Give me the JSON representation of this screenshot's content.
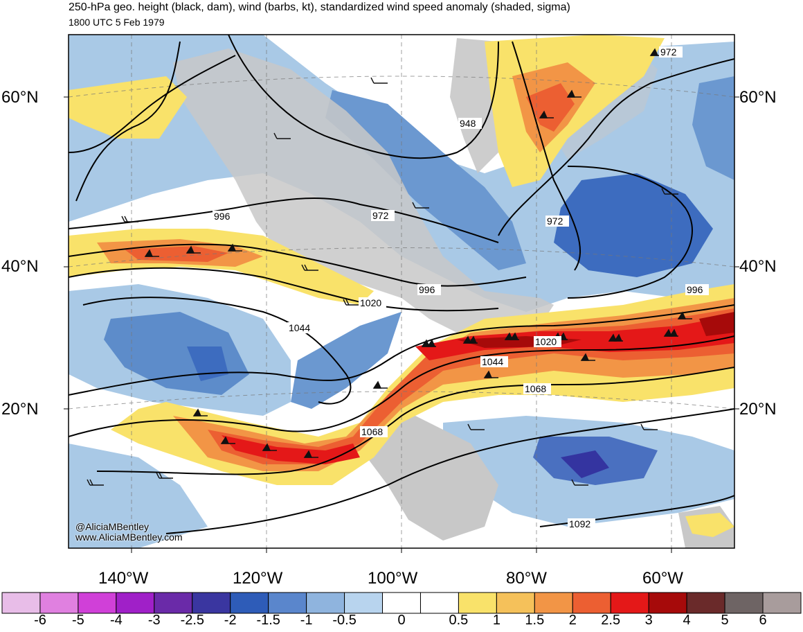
{
  "header": {
    "title": "250-hPa geo. height (black, dam), wind (barbs, kt), standardized wind speed anomaly (shaded, sigma)",
    "subtitle": "1800 UTC 5 Feb 1979"
  },
  "map": {
    "lat_labels": [
      "60°N",
      "40°N",
      "20°N"
    ],
    "lon_labels": [
      "140°W",
      "120°W",
      "100°W",
      "80°W",
      "60°W"
    ],
    "contour_labels": [
      "972",
      "948",
      "996",
      "972",
      "972",
      "996",
      "1020",
      "996",
      "1044",
      "1020",
      "1044",
      "1068",
      "1068",
      "1092"
    ],
    "credit_handle": "@AliciaMBentley",
    "credit_site": "www.AliciaMBentley.com",
    "land_color": "#c8c8c8",
    "contour_color": "#000000"
  },
  "colorbar": {
    "labels": [
      "-6",
      "-5",
      "-4",
      "-3",
      "-2.5",
      "-2",
      "-1.5",
      "-1",
      "-0.5",
      "0",
      "0.5",
      "1",
      "1.5",
      "2",
      "2.5",
      "3",
      "4",
      "5",
      "6"
    ],
    "colors": [
      "#e8bde8",
      "#e080e0",
      "#d040d8",
      "#a020c8",
      "#6a2aa8",
      "#3a36a0",
      "#2e5cb8",
      "#5a86cc",
      "#8fb4de",
      "#b8d4ee",
      "#ffffff",
      "#ffffff",
      "#f9e26a",
      "#f5c15a",
      "#f29546",
      "#ec5f32",
      "#e41818",
      "#a60a0a",
      "#6a2a2a",
      "#6e6464",
      "#a89c9c"
    ]
  }
}
